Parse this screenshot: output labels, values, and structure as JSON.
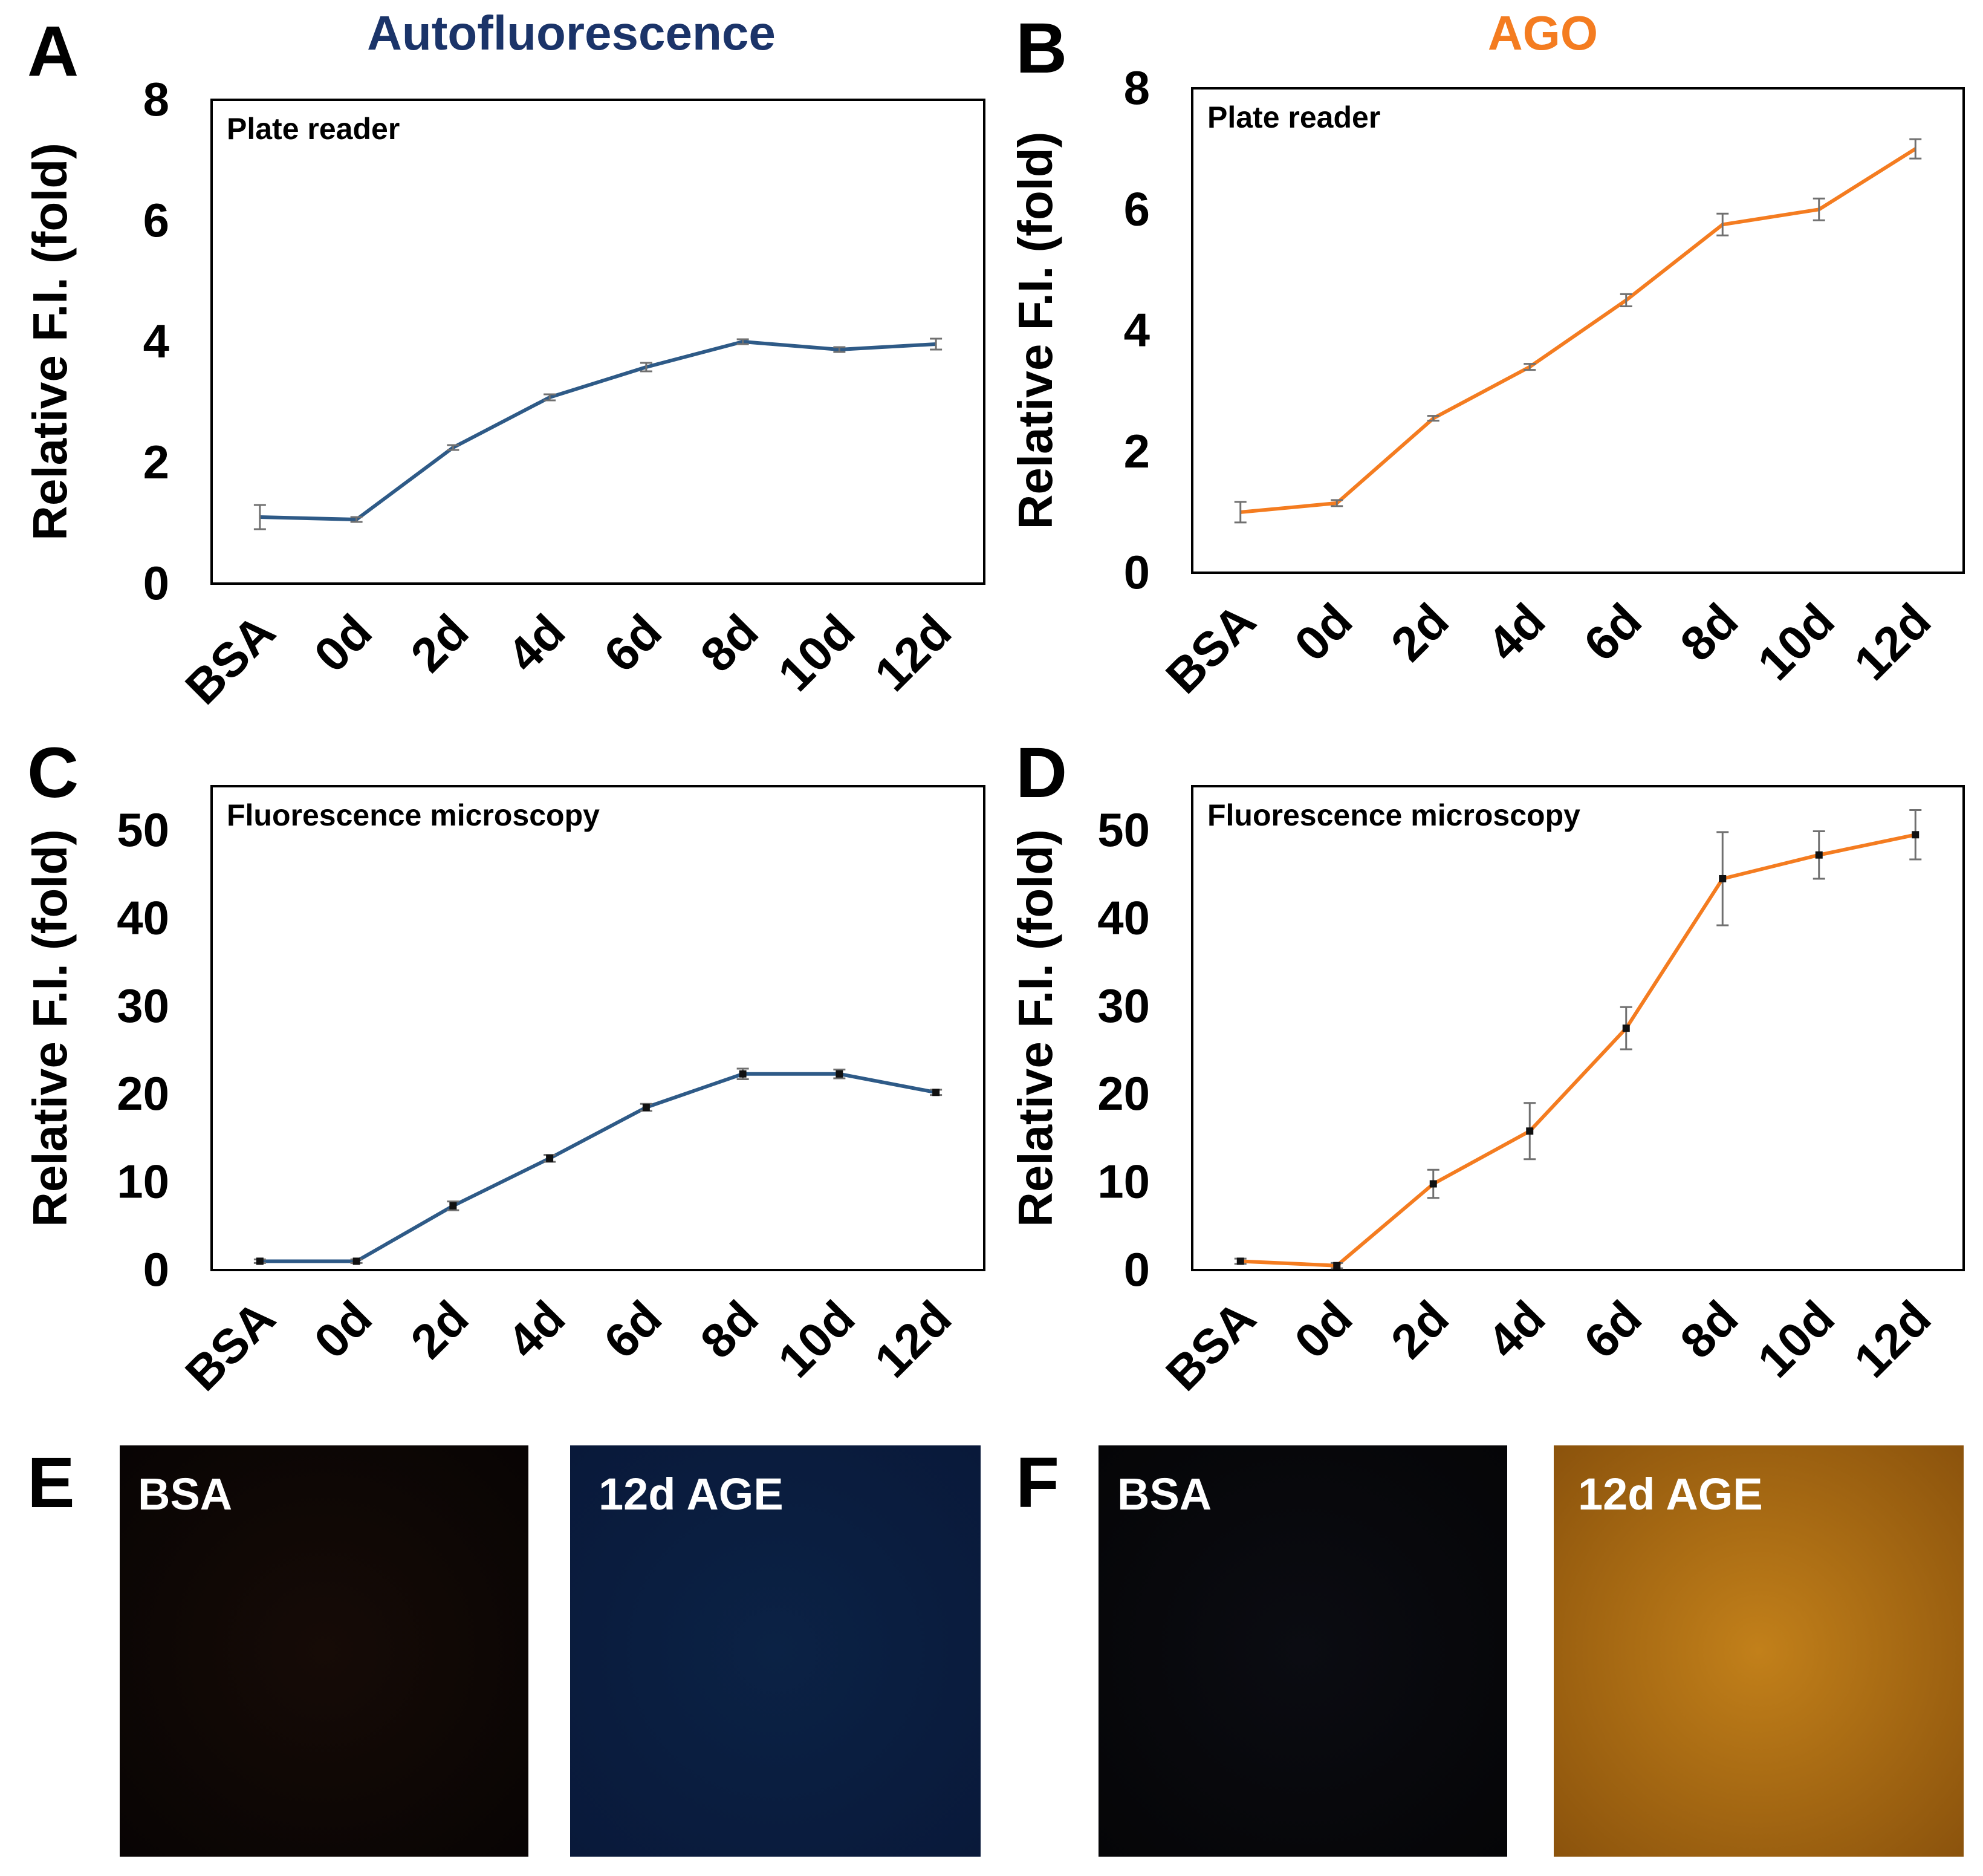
{
  "columns": [
    {
      "title": "Autofluorescence",
      "color": "#1b3469"
    },
    {
      "title": "AGO",
      "color": "#f47c20"
    }
  ],
  "panel_letters": [
    "A",
    "B",
    "C",
    "D",
    "E",
    "F"
  ],
  "chart_data": [
    {
      "panel": "A",
      "type": "line",
      "annotation": "Plate reader",
      "ylabel": "Relative F.I. (fold)",
      "xlabel": "",
      "ylim": [
        0,
        8
      ],
      "yticks": [
        "0",
        "2",
        "4",
        "6",
        "8"
      ],
      "categories": [
        "BSA",
        "0d",
        "2d",
        "4d",
        "6d",
        "8d",
        "10d",
        "12d"
      ],
      "grid": false,
      "line_color": "#2e5a87",
      "marker": false,
      "series": [
        {
          "values": [
            1.1,
            1.06,
            2.25,
            3.08,
            3.58,
            4.0,
            3.87,
            3.96
          ],
          "errors": [
            0.2,
            0.04,
            0.04,
            0.05,
            0.07,
            0.04,
            0.04,
            0.09
          ]
        }
      ]
    },
    {
      "panel": "B",
      "type": "line",
      "annotation": "Plate reader",
      "ylabel": "Relative F.I. (fold)",
      "xlabel": "",
      "ylim": [
        0,
        8
      ],
      "yticks": [
        "0",
        "2",
        "4",
        "6",
        "8"
      ],
      "categories": [
        "BSA",
        "0d",
        "2d",
        "4d",
        "6d",
        "8d",
        "10d",
        "12d"
      ],
      "grid": false,
      "line_color": "#f47c20",
      "marker": false,
      "series": [
        {
          "values": [
            1.0,
            1.15,
            2.55,
            3.4,
            4.5,
            5.75,
            6.0,
            7.0
          ],
          "errors": [
            0.17,
            0.05,
            0.04,
            0.05,
            0.1,
            0.18,
            0.18,
            0.16
          ]
        }
      ]
    },
    {
      "panel": "C",
      "type": "line",
      "annotation": "Fluorescence microscopy",
      "ylabel": "Relative F.I. (fold)",
      "xlabel": "",
      "ylim": [
        0,
        55
      ],
      "yticks": [
        "0",
        "10",
        "20",
        "30",
        "40",
        "50"
      ],
      "categories": [
        "BSA",
        "0d",
        "2d",
        "4d",
        "6d",
        "8d",
        "10d",
        "12d"
      ],
      "grid": false,
      "line_color": "#2e5a87",
      "marker": true,
      "series": [
        {
          "values": [
            1.0,
            1.0,
            7.3,
            12.7,
            18.5,
            22.3,
            22.3,
            20.2
          ],
          "errors": [
            0.2,
            0.2,
            0.5,
            0.4,
            0.4,
            0.6,
            0.5,
            0.3
          ]
        }
      ]
    },
    {
      "panel": "D",
      "type": "line",
      "annotation": "Fluorescence microscopy",
      "ylabel": "Relative F.I. (fold)",
      "xlabel": "",
      "ylim": [
        0,
        55
      ],
      "yticks": [
        "0",
        "10",
        "20",
        "30",
        "40",
        "50"
      ],
      "categories": [
        "BSA",
        "0d",
        "2d",
        "4d",
        "6d",
        "8d",
        "10d",
        "12d"
      ],
      "grid": false,
      "line_color": "#f47c20",
      "marker": true,
      "series": [
        {
          "values": [
            1.0,
            0.5,
            9.8,
            15.8,
            27.5,
            44.5,
            47.2,
            49.5
          ],
          "errors": [
            0.3,
            0.3,
            1.6,
            3.2,
            2.4,
            5.3,
            2.7,
            2.8
          ]
        }
      ]
    }
  ],
  "micrographs": [
    {
      "panel": "E",
      "label": "BSA",
      "color_center": "#160b06",
      "color_edge": "#080404"
    },
    {
      "panel": "E",
      "label": "12d AGE",
      "color_center": "#0b2245",
      "color_edge": "#09193a"
    },
    {
      "panel": "F",
      "label": "BSA",
      "color_center": "#0b0c12",
      "color_edge": "#050507"
    },
    {
      "panel": "F",
      "label": "12d AGE",
      "color_center": "#c2801a",
      "color_edge": "#8a520c"
    }
  ]
}
